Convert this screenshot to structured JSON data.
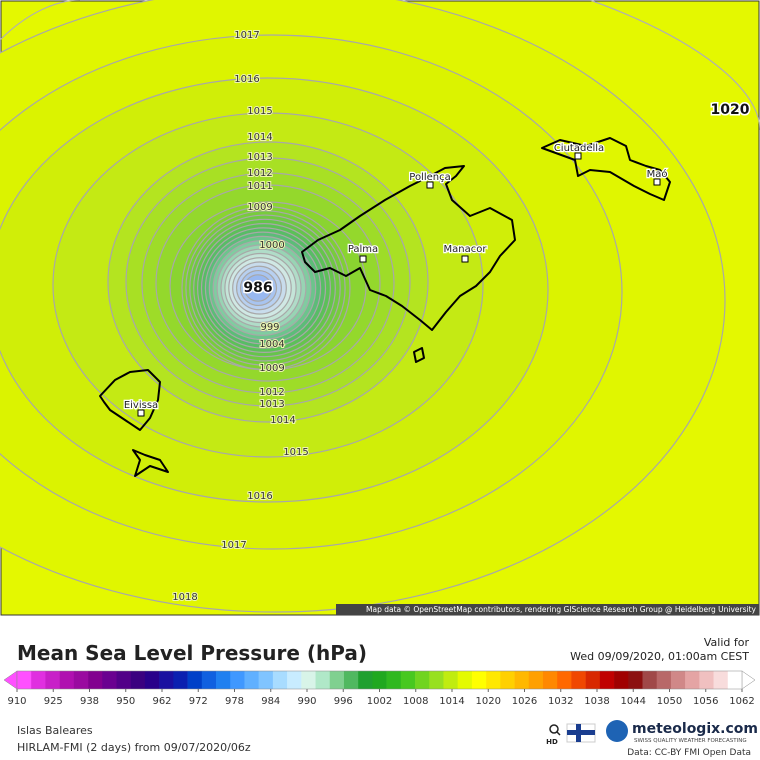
{
  "map": {
    "contour_labels": [
      1017,
      1016,
      1015,
      1014,
      1013,
      1012,
      1011,
      1009,
      1000,
      986,
      999,
      1004,
      1009,
      1012,
      1013,
      1014,
      1015,
      1016,
      1017,
      1018,
      1020
    ],
    "places": [
      "Ciutadella",
      "Pollença",
      "Maó",
      "Palma",
      "Manacor",
      "Eivissa"
    ],
    "attribution": "Map data © OpenStreetMap contributors, rendering GIScience Research Group @ Heidelberg University"
  },
  "legend": {
    "title": "Mean Sea Level Pressure (hPa)",
    "valid_label": "Valid for",
    "valid_time": "Wed 09/09/2020, 01:00am CEST",
    "colorbar": {
      "ticks": [
        910,
        925,
        938,
        950,
        962,
        972,
        978,
        984,
        990,
        996,
        1002,
        1008,
        1014,
        1020,
        1026,
        1032,
        1038,
        1044,
        1050,
        1056,
        1062
      ],
      "colors": [
        "#ff50ff",
        "#e030e0",
        "#c820c8",
        "#b010b0",
        "#9a0aa0",
        "#82008f",
        "#6a0090",
        "#520088",
        "#3a0080",
        "#28008a",
        "#1a10a0",
        "#0a20b0",
        "#0040c8",
        "#1060e0",
        "#2080f0",
        "#4098ff",
        "#60b0ff",
        "#80c4ff",
        "#a8dcff",
        "#c8ecff",
        "#d8f4e8",
        "#b0e8c8",
        "#80d090",
        "#50b860",
        "#20a030",
        "#20a820",
        "#30b820",
        "#48c820",
        "#70d420",
        "#98e020",
        "#c0ec10",
        "#e4fa00",
        "#ffff00",
        "#ffe800",
        "#ffd000",
        "#ffb800",
        "#ffa000",
        "#ff8800",
        "#ff6800",
        "#f04800",
        "#d82800",
        "#c00000",
        "#a00000",
        "#8c1010",
        "#a04848",
        "#b86868",
        "#d08888",
        "#e4a4a4",
        "#f0c0c0",
        "#f8dcdc",
        "#ffffff"
      ]
    }
  },
  "footer": {
    "region": "Islas Baleares",
    "model": "HIRLAM-FMI (2 days) from 09/07/2020/06z",
    "hd": "HD",
    "brand": "meteologix.com",
    "tagline": "SWISS QUALITY WEATHER FORECASTING",
    "data_source": "Data: CC-BY FMI Open Data"
  }
}
